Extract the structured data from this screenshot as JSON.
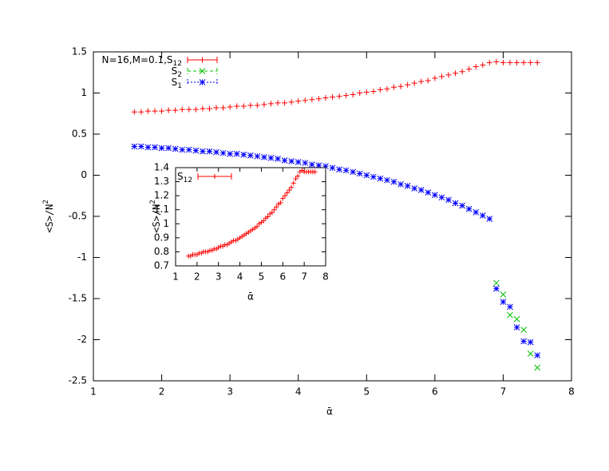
{
  "chart_data": [
    {
      "type": "scatter",
      "xlabel": "ᾱ",
      "ylabel": "<S>/N2",
      "xlim": [
        1,
        8
      ],
      "ylim": [
        -2.5,
        1.5
      ],
      "xticks": [
        1,
        2,
        3,
        4,
        5,
        6,
        7,
        8
      ],
      "yticks": [
        -2.5,
        -2,
        -1.5,
        -1,
        -0.5,
        0,
        0.5,
        1,
        1.5
      ],
      "series": [
        {
          "name": "N=16,M=0.1,S12",
          "color": "#ff0000",
          "marker": "plus",
          "legend_line": "solid",
          "x": [
            1.6,
            1.7,
            1.8,
            1.9,
            2.0,
            2.1,
            2.2,
            2.3,
            2.4,
            2.5,
            2.6,
            2.7,
            2.8,
            2.9,
            3.0,
            3.1,
            3.2,
            3.3,
            3.4,
            3.5,
            3.6,
            3.7,
            3.8,
            3.9,
            4.0,
            4.1,
            4.2,
            4.3,
            4.4,
            4.5,
            4.6,
            4.7,
            4.8,
            4.9,
            5.0,
            5.1,
            5.2,
            5.3,
            5.4,
            5.5,
            5.6,
            5.7,
            5.8,
            5.9,
            6.0,
            6.1,
            6.2,
            6.3,
            6.4,
            6.5,
            6.6,
            6.7,
            6.8,
            6.9,
            7.0,
            7.1,
            7.2,
            7.3,
            7.4,
            7.5
          ],
          "values": [
            0.77,
            0.77,
            0.78,
            0.78,
            0.78,
            0.79,
            0.79,
            0.8,
            0.8,
            0.8,
            0.81,
            0.81,
            0.82,
            0.82,
            0.83,
            0.84,
            0.84,
            0.85,
            0.85,
            0.86,
            0.87,
            0.88,
            0.88,
            0.89,
            0.9,
            0.91,
            0.92,
            0.93,
            0.94,
            0.95,
            0.96,
            0.97,
            0.98,
            1.0,
            1.01,
            1.02,
            1.04,
            1.05,
            1.07,
            1.08,
            1.1,
            1.12,
            1.14,
            1.15,
            1.18,
            1.2,
            1.22,
            1.24,
            1.26,
            1.29,
            1.32,
            1.34,
            1.37,
            1.38,
            1.37,
            1.37,
            1.37,
            1.37,
            1.37,
            1.37
          ]
        },
        {
          "name": "S2",
          "color": "#00c000",
          "marker": "cross",
          "legend_line": "dashed",
          "x": [
            6.9,
            7.0,
            7.1,
            7.2,
            7.3,
            7.4,
            7.5
          ],
          "values": [
            -1.31,
            -1.45,
            -1.7,
            -1.75,
            -1.88,
            -2.17,
            -2.34
          ]
        },
        {
          "name": "S1",
          "color": "#0000ff",
          "marker": "star",
          "legend_line": "dotted",
          "x": [
            1.6,
            1.7,
            1.8,
            1.9,
            2.0,
            2.1,
            2.2,
            2.3,
            2.4,
            2.5,
            2.6,
            2.7,
            2.8,
            2.9,
            3.0,
            3.1,
            3.2,
            3.3,
            3.4,
            3.5,
            3.6,
            3.7,
            3.8,
            3.9,
            4.0,
            4.1,
            4.2,
            4.3,
            4.4,
            4.5,
            4.6,
            4.7,
            4.8,
            4.9,
            5.0,
            5.1,
            5.2,
            5.3,
            5.4,
            5.5,
            5.6,
            5.7,
            5.8,
            5.9,
            6.0,
            6.1,
            6.2,
            6.3,
            6.4,
            6.5,
            6.6,
            6.7,
            6.8,
            6.9,
            7.0,
            7.1,
            7.2,
            7.3,
            7.4,
            7.5
          ],
          "values": [
            0.35,
            0.35,
            0.34,
            0.34,
            0.33,
            0.33,
            0.32,
            0.31,
            0.31,
            0.3,
            0.29,
            0.29,
            0.28,
            0.27,
            0.26,
            0.26,
            0.25,
            0.24,
            0.23,
            0.22,
            0.21,
            0.2,
            0.18,
            0.17,
            0.16,
            0.15,
            0.13,
            0.12,
            0.11,
            0.09,
            0.07,
            0.06,
            0.04,
            0.02,
            0,
            -0.02,
            -0.04,
            -0.06,
            -0.08,
            -0.11,
            -0.13,
            -0.16,
            -0.18,
            -0.21,
            -0.24,
            -0.27,
            -0.3,
            -0.34,
            -0.37,
            -0.41,
            -0.45,
            -0.49,
            -0.53,
            -1.38,
            -1.54,
            -1.6,
            -1.85,
            -2.02,
            -2.03,
            -2.19
          ]
        }
      ]
    },
    {
      "type": "scatter",
      "xlabel": "ᾱ",
      "ylabel": "<S>/N2",
      "xlim": [
        1,
        8
      ],
      "ylim": [
        0.7,
        1.4
      ],
      "xticks": [
        1,
        2,
        3,
        4,
        5,
        6,
        7,
        8
      ],
      "yticks": [
        0.7,
        0.8,
        0.9,
        1,
        1.1,
        1.2,
        1.3,
        1.4
      ],
      "series": [
        {
          "name": "S12",
          "color": "#ff0000",
          "marker": "plus",
          "legend_line": "solid",
          "x": [
            1.6,
            1.7,
            1.8,
            1.9,
            2.0,
            2.1,
            2.2,
            2.3,
            2.4,
            2.5,
            2.6,
            2.7,
            2.8,
            2.9,
            3.0,
            3.1,
            3.2,
            3.3,
            3.4,
            3.5,
            3.6,
            3.7,
            3.8,
            3.9,
            4.0,
            4.1,
            4.2,
            4.3,
            4.4,
            4.5,
            4.6,
            4.7,
            4.8,
            4.9,
            5.0,
            5.1,
            5.2,
            5.3,
            5.4,
            5.5,
            5.6,
            5.7,
            5.8,
            5.9,
            6.0,
            6.1,
            6.2,
            6.3,
            6.4,
            6.5,
            6.6,
            6.7,
            6.8,
            6.9,
            7.0,
            7.1,
            7.2,
            7.3,
            7.4,
            7.5
          ],
          "values": [
            0.77,
            0.77,
            0.78,
            0.78,
            0.78,
            0.79,
            0.79,
            0.8,
            0.8,
            0.8,
            0.81,
            0.81,
            0.82,
            0.82,
            0.83,
            0.84,
            0.84,
            0.85,
            0.85,
            0.86,
            0.87,
            0.88,
            0.88,
            0.89,
            0.9,
            0.91,
            0.92,
            0.93,
            0.94,
            0.95,
            0.96,
            0.97,
            0.98,
            1.0,
            1.01,
            1.02,
            1.04,
            1.05,
            1.07,
            1.08,
            1.1,
            1.12,
            1.14,
            1.15,
            1.18,
            1.2,
            1.22,
            1.24,
            1.26,
            1.29,
            1.32,
            1.34,
            1.37,
            1.38,
            1.37,
            1.37,
            1.37,
            1.37,
            1.37,
            1.37
          ]
        }
      ]
    }
  ]
}
